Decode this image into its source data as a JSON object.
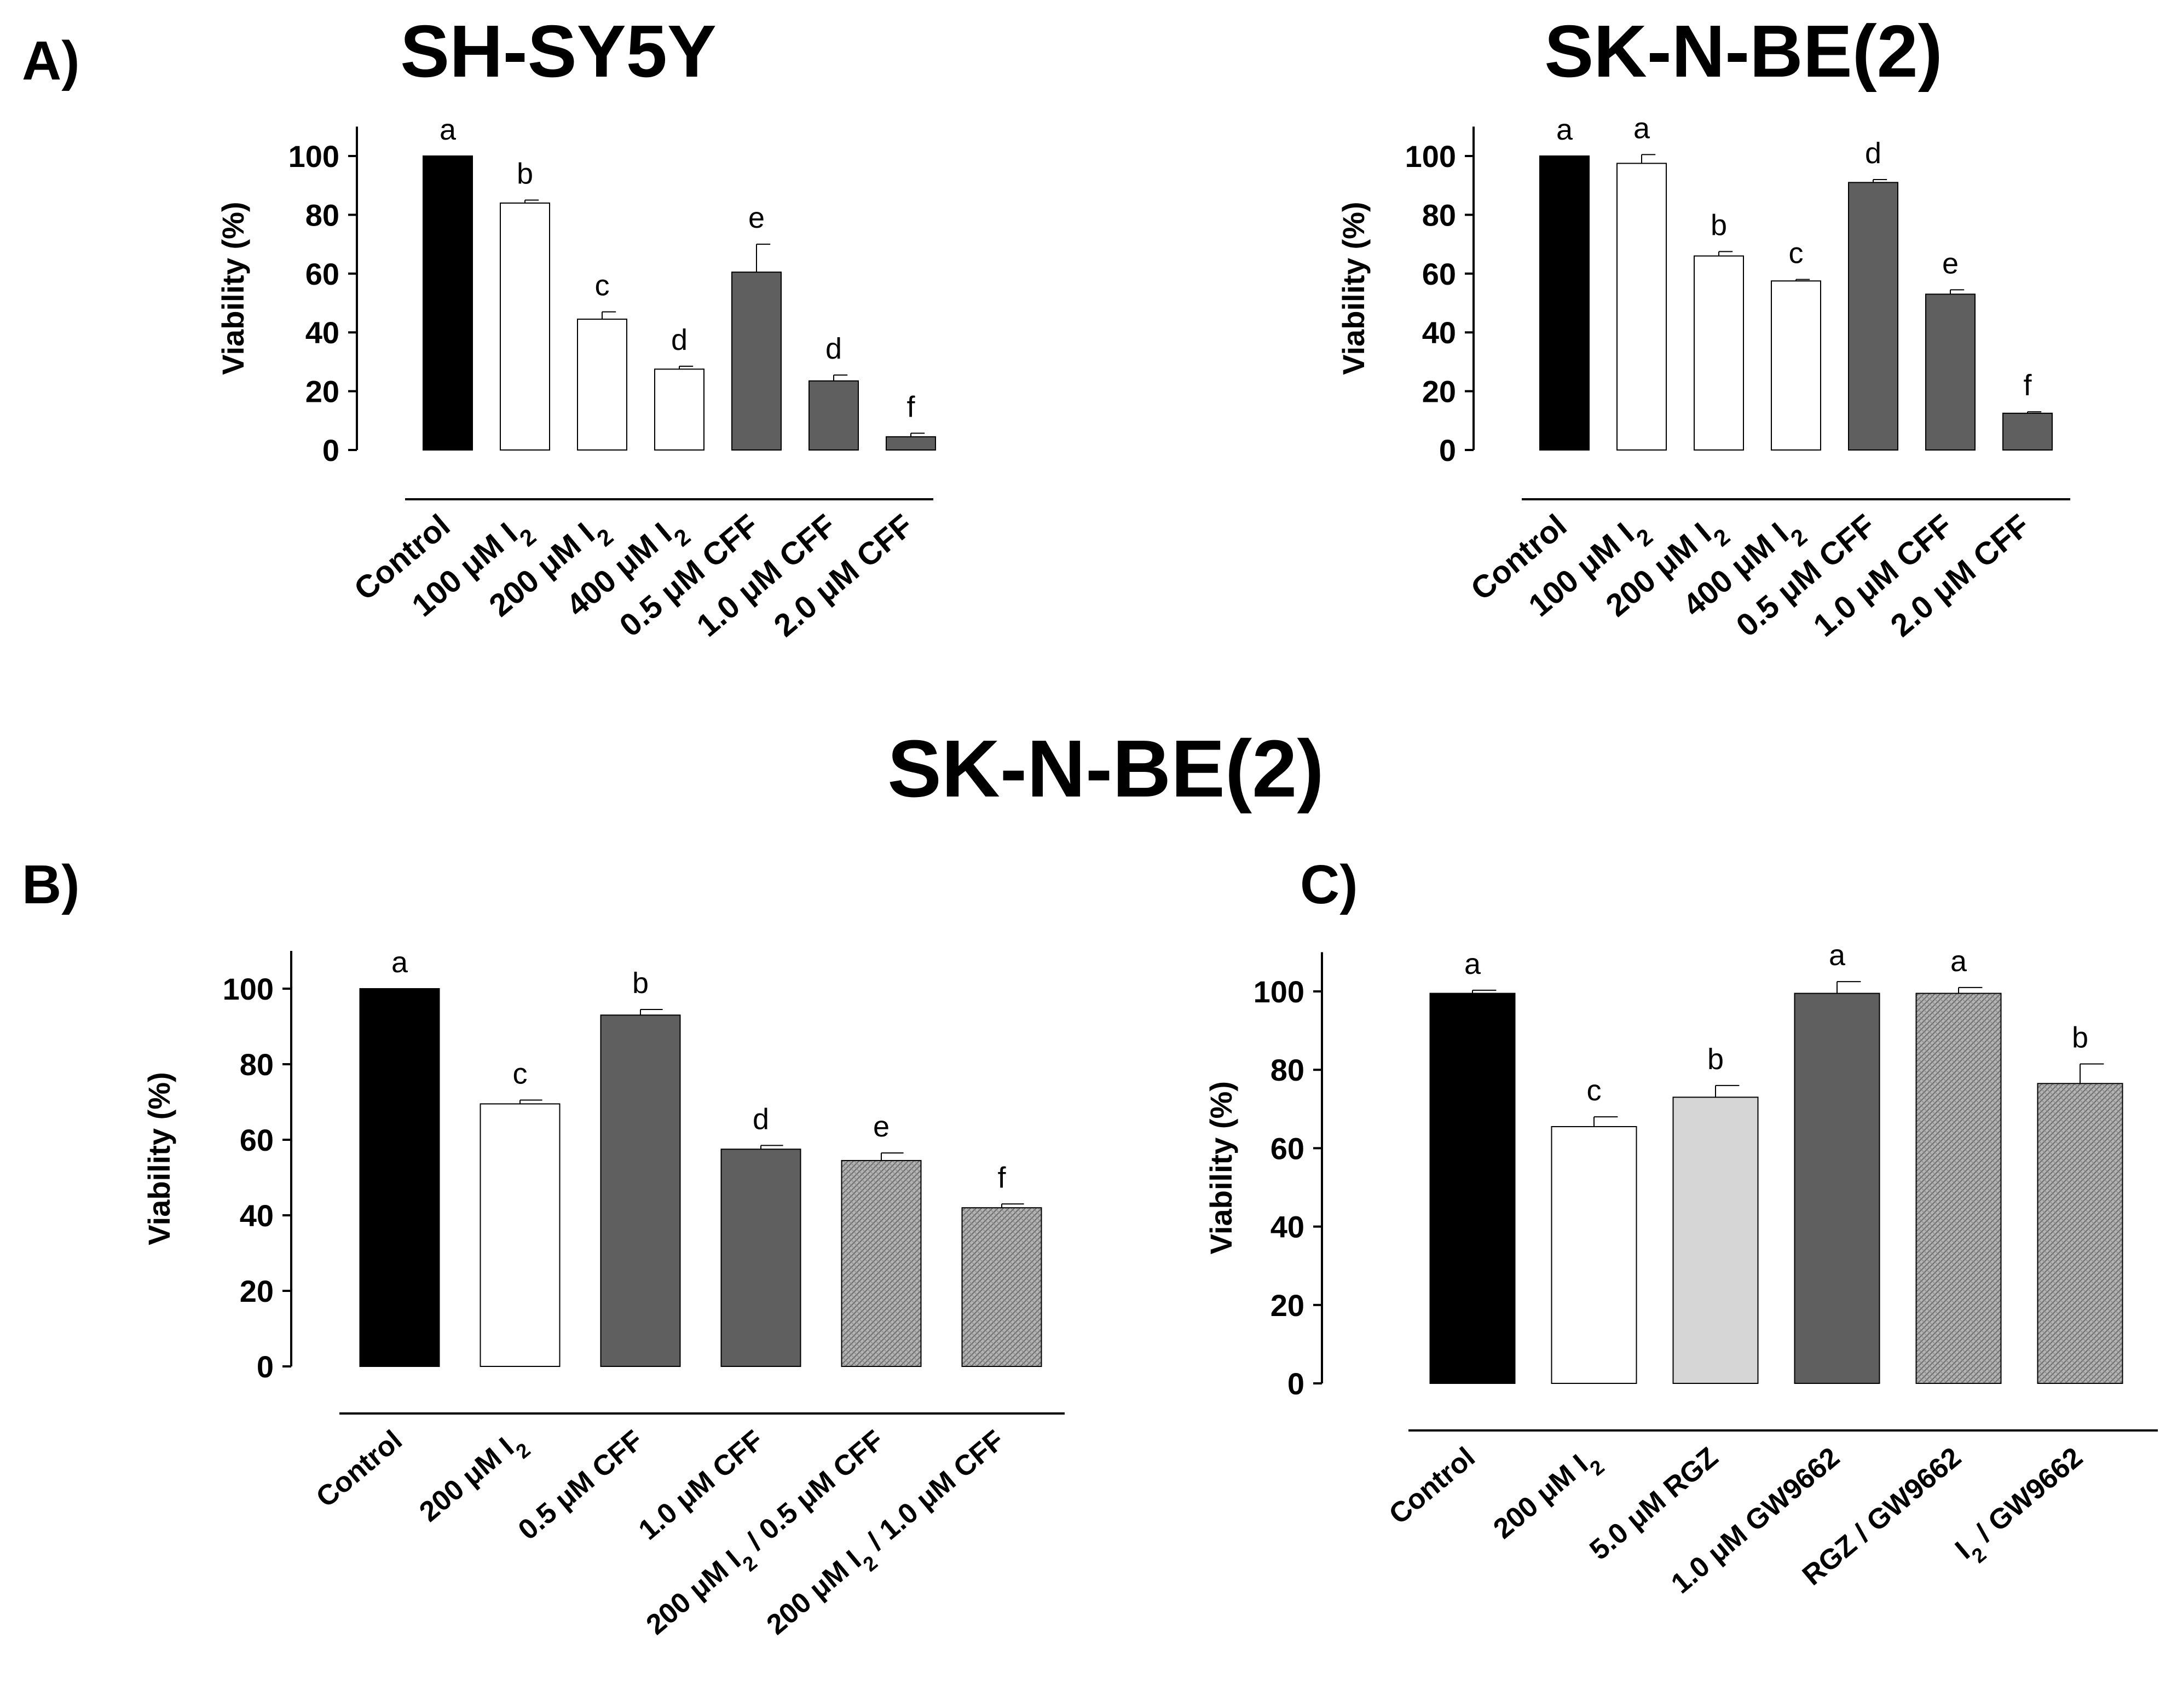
{
  "figure": {
    "panel_labels": [
      "A)",
      "B)",
      "C)"
    ],
    "section_title": "SK-N-BE(2)"
  },
  "colors": {
    "black": "#000000",
    "white": "#ffffff",
    "dark_gray": "#5f5f5f",
    "light_gray": "#d6d6d6",
    "hatch": "#9a9a9a"
  },
  "chart_data": [
    {
      "id": "a1",
      "type": "bar",
      "panel": "A)",
      "title": "SH-SY5Y",
      "ylabel": "Viability (%)",
      "ylim": [
        0,
        110
      ],
      "yticks": [
        0,
        20,
        40,
        60,
        80,
        100
      ],
      "categories": [
        {
          "pre": "Control"
        },
        {
          "pre": "100 μM I",
          "sub": "2"
        },
        {
          "pre": "200 μM I",
          "sub": "2"
        },
        {
          "pre": "400 μM I",
          "sub": "2"
        },
        {
          "pre": "0.5 μM CFF"
        },
        {
          "pre": "1.0 μM CFF"
        },
        {
          "pre": "2.0 μM CFF"
        }
      ],
      "values": [
        100,
        84,
        44.5,
        27.5,
        60.5,
        23.5,
        4.5
      ],
      "errors": [
        0,
        1,
        2.5,
        1,
        9.5,
        2,
        1.2
      ],
      "letters": [
        "a",
        "b",
        "c",
        "d",
        "e",
        "d",
        "f"
      ],
      "fills": [
        "black",
        "white",
        "white",
        "white",
        "dark_gray",
        "dark_gray",
        "dark_gray"
      ]
    },
    {
      "id": "a2",
      "type": "bar",
      "panel": "",
      "title": "SK-N-BE(2)",
      "ylabel": "Viability (%)",
      "ylim": [
        0,
        110
      ],
      "yticks": [
        0,
        20,
        40,
        60,
        80,
        100
      ],
      "categories": [
        {
          "pre": "Control"
        },
        {
          "pre": "100 μM I",
          "sub": "2"
        },
        {
          "pre": "200 μM I",
          "sub": "2"
        },
        {
          "pre": "400 μM I",
          "sub": "2"
        },
        {
          "pre": "0.5 μM CFF"
        },
        {
          "pre": "1.0 μM CFF"
        },
        {
          "pre": "2.0 μM CFF"
        }
      ],
      "values": [
        100,
        97.5,
        66,
        57.5,
        91,
        53,
        12.5
      ],
      "errors": [
        0,
        3,
        1.5,
        0.5,
        1,
        1.5,
        0.5
      ],
      "letters": [
        "a",
        "a",
        "b",
        "c",
        "d",
        "e",
        "f"
      ],
      "fills": [
        "black",
        "white",
        "white",
        "white",
        "dark_gray",
        "dark_gray",
        "dark_gray"
      ]
    },
    {
      "id": "b",
      "type": "bar",
      "panel": "B)",
      "title": "",
      "ylabel": "Viability (%)",
      "ylim": [
        0,
        110
      ],
      "yticks": [
        0,
        20,
        40,
        60,
        80,
        100
      ],
      "categories": [
        {
          "pre": "Control"
        },
        {
          "pre": "200 μM I",
          "sub": "2"
        },
        {
          "pre": "0.5 μM CFF"
        },
        {
          "pre": "1.0 μM CFF"
        },
        {
          "pre": "200 μM I",
          "sub": "2",
          "post": " / 0.5 μM CFF"
        },
        {
          "pre": "200 μM I",
          "sub": "2",
          "post": " / 1.0 μM CFF"
        }
      ],
      "values": [
        100,
        69.5,
        93,
        57.5,
        54.5,
        42
      ],
      "errors": [
        0,
        1,
        1.5,
        1,
        2,
        1
      ],
      "letters": [
        "a",
        "c",
        "b",
        "d",
        "e",
        "f"
      ],
      "fills": [
        "black",
        "white",
        "dark_gray",
        "dark_gray",
        "hatch",
        "hatch"
      ]
    },
    {
      "id": "c",
      "type": "bar",
      "panel": "C)",
      "title": "",
      "ylabel": "Viability (%)",
      "ylim": [
        0,
        110
      ],
      "yticks": [
        0,
        20,
        40,
        60,
        80,
        100
      ],
      "categories": [
        {
          "pre": "Control"
        },
        {
          "pre": "200 μM I",
          "sub": "2"
        },
        {
          "pre": "5.0 μM RGZ"
        },
        {
          "pre": "1.0 μM  GW9662"
        },
        {
          "pre": "RGZ / GW9662"
        },
        {
          "pre": "I",
          "sub": "2",
          "post": " / GW9662"
        }
      ],
      "values": [
        99.5,
        65.5,
        73,
        99.5,
        99.5,
        76.5
      ],
      "errors": [
        0.8,
        2.5,
        3,
        3,
        1.5,
        5
      ],
      "letters": [
        "a",
        "c",
        "b",
        "a",
        "a",
        "b"
      ],
      "fills": [
        "black",
        "white",
        "light_gray",
        "dark_gray",
        "hatch",
        "hatch"
      ]
    }
  ]
}
